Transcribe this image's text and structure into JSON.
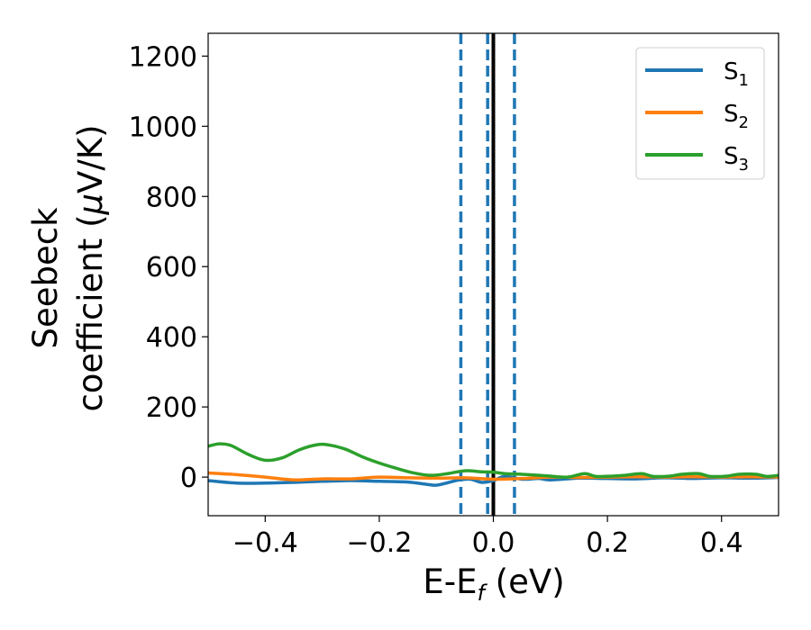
{
  "chart_data": {
    "type": "line",
    "xlabel": "E-E",
    "xlabel_sub": "f",
    "xlabel_unit": " (eV)",
    "ylabel_line1": "Seebeck",
    "ylabel_line2_prefix": "coefficient  (",
    "ylabel_mu": "μ",
    "ylabel_line2_suffix": "V/K)",
    "xlim": [
      -0.5,
      0.5
    ],
    "ylim": [
      -110,
      1265
    ],
    "x_ticks": [
      -0.4,
      -0.2,
      0.0,
      0.2,
      0.4
    ],
    "x_tick_labels": [
      "−0.4",
      "−0.2",
      "0.0",
      "0.2",
      "0.4"
    ],
    "y_ticks": [
      0,
      200,
      400,
      600,
      800,
      1000,
      1200
    ],
    "y_tick_labels": [
      "0",
      "200",
      "400",
      "600",
      "800",
      "1000",
      "1200"
    ],
    "legend_position": "top-right",
    "vlines": [
      {
        "x": -0.057,
        "style": "dashed",
        "color": "#1f77b4"
      },
      {
        "x": -0.01,
        "style": "dashed",
        "color": "#1f77b4"
      },
      {
        "x": 0.037,
        "style": "dashed",
        "color": "#1f77b4"
      },
      {
        "x": 0.0,
        "style": "solid",
        "color": "#000000"
      }
    ],
    "series": [
      {
        "name": "S",
        "sub": "1",
        "color": "#1f77b4",
        "x": [
          -0.5,
          -0.45,
          -0.4,
          -0.35,
          -0.3,
          -0.25,
          -0.2,
          -0.15,
          -0.12,
          -0.1,
          -0.08,
          -0.06,
          -0.04,
          -0.02,
          0.0,
          0.02,
          0.05,
          0.08,
          0.1,
          0.15,
          0.2,
          0.25,
          0.3,
          0.35,
          0.4,
          0.45,
          0.5
        ],
        "y": [
          -10,
          -17,
          -17,
          -15,
          -12,
          -10,
          -12,
          -14,
          -20,
          -23,
          -16,
          -8,
          -6,
          -15,
          -10,
          2,
          -6,
          -4,
          -8,
          -3,
          -4,
          -5,
          -2,
          -4,
          -2,
          -3,
          -1
        ]
      },
      {
        "name": "S",
        "sub": "2",
        "color": "#ff7f0e",
        "x": [
          -0.5,
          -0.45,
          -0.4,
          -0.35,
          -0.3,
          -0.25,
          -0.2,
          -0.15,
          -0.1,
          -0.05,
          0.0,
          0.05,
          0.1,
          0.15,
          0.2,
          0.25,
          0.3,
          0.35,
          0.4,
          0.45,
          0.5
        ],
        "y": [
          12,
          7,
          0,
          -8,
          -5,
          -5,
          0,
          -2,
          -3,
          -2,
          -6,
          -4,
          0,
          -1,
          0,
          1,
          0,
          1,
          0,
          1,
          0
        ]
      },
      {
        "name": "S",
        "sub": "3",
        "color": "#2ca02c",
        "x": [
          -0.5,
          -0.48,
          -0.46,
          -0.43,
          -0.4,
          -0.37,
          -0.34,
          -0.31,
          -0.29,
          -0.26,
          -0.23,
          -0.2,
          -0.17,
          -0.14,
          -0.11,
          -0.08,
          -0.05,
          -0.02,
          0.0,
          0.02,
          0.05,
          0.08,
          0.1,
          0.13,
          0.16,
          0.18,
          0.21,
          0.23,
          0.26,
          0.28,
          0.31,
          0.33,
          0.36,
          0.38,
          0.41,
          0.43,
          0.46,
          0.48,
          0.5
        ],
        "y": [
          88,
          95,
          90,
          65,
          48,
          55,
          78,
          92,
          92,
          80,
          58,
          40,
          25,
          12,
          5,
          10,
          18,
          15,
          14,
          10,
          8,
          5,
          3,
          0,
          10,
          2,
          3,
          5,
          10,
          2,
          3,
          8,
          10,
          2,
          3,
          8,
          8,
          2,
          5
        ]
      }
    ]
  }
}
